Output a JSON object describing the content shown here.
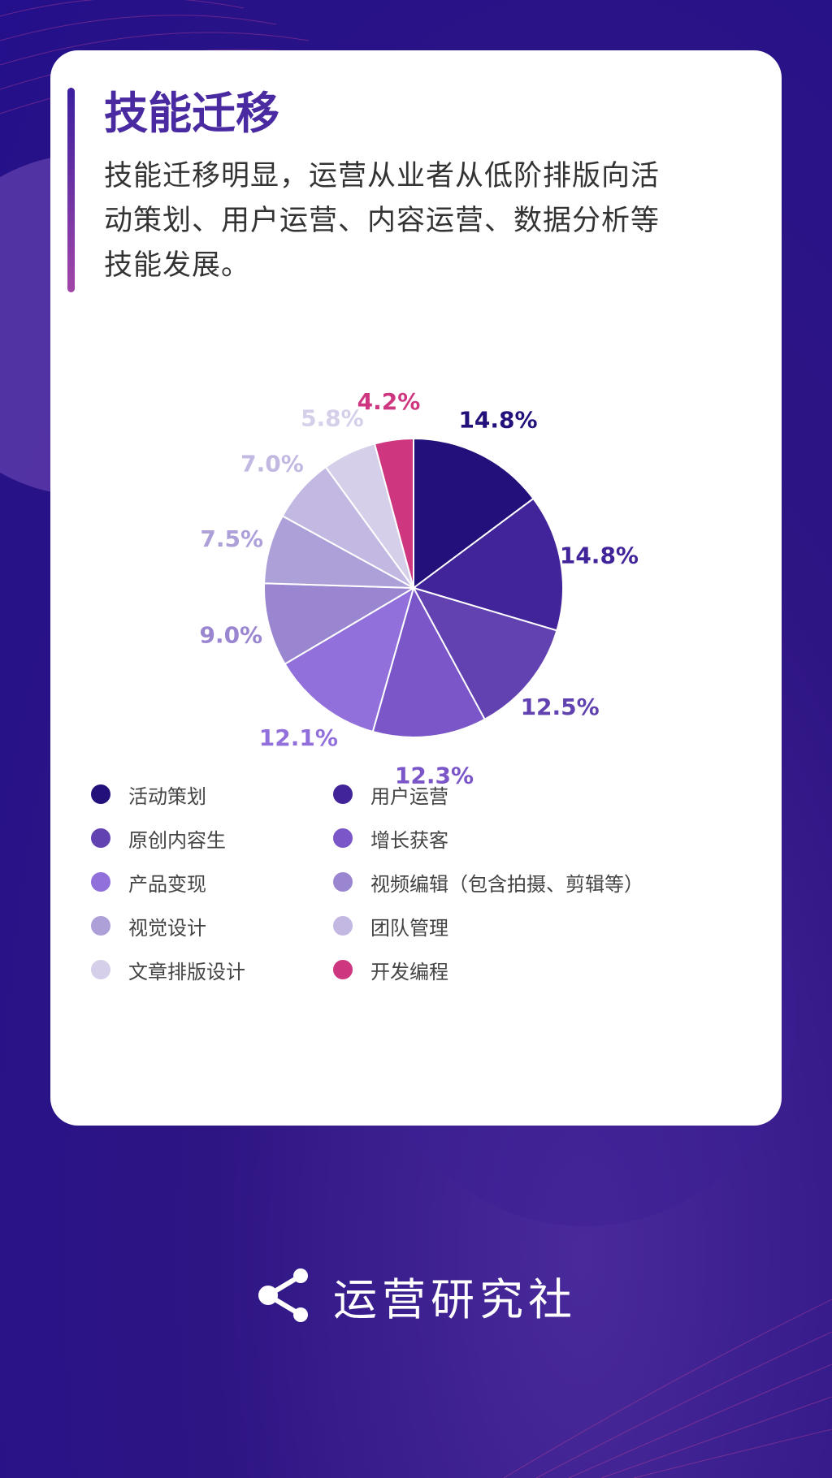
{
  "title": "技能迁移",
  "description": "技能迁移明显，运营从业者从低阶排版向活动策划、用户运营、内容运营、数据分析等技能发展。",
  "chart_data": {
    "type": "pie",
    "slices": [
      {
        "label": "活动策划",
        "value": 14.8,
        "display": "14.8%",
        "color": "#24107a"
      },
      {
        "label": "用户运营",
        "value": 14.8,
        "display": "14.8%",
        "color": "#42249a"
      },
      {
        "label": "原创内容生",
        "value": 12.5,
        "display": "12.5%",
        "color": "#6142b0"
      },
      {
        "label": "增长获客",
        "value": 12.3,
        "display": "12.3%",
        "color": "#7a56c8"
      },
      {
        "label": "产品变现",
        "value": 12.1,
        "display": "12.1%",
        "color": "#9270dc"
      },
      {
        "label": "视频编辑（包含拍摄、剪辑等）",
        "value": 9.0,
        "display": "9.0%",
        "color": "#9a86d0"
      },
      {
        "label": "视觉设计",
        "value": 7.5,
        "display": "7.5%",
        "color": "#ad9fd8"
      },
      {
        "label": "团队管理",
        "value": 7.0,
        "display": "7.0%",
        "color": "#c2b8e2"
      },
      {
        "label": "文章排版设计",
        "value": 5.8,
        "display": "5.8%",
        "color": "#d6cfea"
      },
      {
        "label": "开发编程",
        "value": 4.2,
        "display": "4.2%",
        "color": "#cf3680"
      }
    ],
    "label_colors": [
      "#24107a",
      "#42249a",
      "#6142b0",
      "#7a56c8",
      "#9270dc",
      "#9a86d0",
      "#ad9fd8",
      "#c2b8e2",
      "#d6cfea",
      "#cf3680"
    ],
    "start": "12 o'clock",
    "direction": "clockwise",
    "legend_placement": "bottom"
  },
  "legend_order": [
    0,
    1,
    2,
    3,
    4,
    5,
    6,
    7,
    8,
    9
  ],
  "brand": {
    "name": "运营研究社",
    "icon": "share-icon"
  }
}
